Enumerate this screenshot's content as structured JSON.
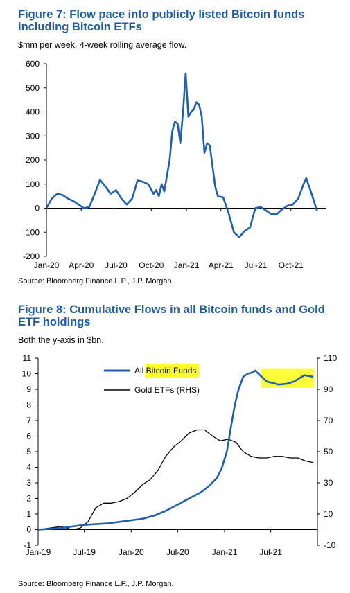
{
  "colors": {
    "title": "#1F5A9C",
    "flow_line": "#1F5FAE",
    "bitcoin_line": "#1F5FAE",
    "gold_line": "#000000",
    "highlight": "#FFFF2E"
  },
  "chart_data": [
    {
      "type": "line",
      "title": "Figure 7: Flow pace into publicly listed Bitcoin funds including Bitcoin ETFs",
      "subtitle": "$mm per week, 4-week rolling average flow.",
      "source": "Source: Bloomberg Finance L.P., J.P. Morgan.",
      "ylim": [
        -200,
        600
      ],
      "yticks": [
        "600",
        "500",
        "400",
        "300",
        "200",
        "100",
        "0",
        "-100",
        "-200"
      ],
      "xlim": [
        "2020-01-01",
        "2021-12-31"
      ],
      "xticks": [
        "Jan-20",
        "Apr-20",
        "Jul-20",
        "Oct-20",
        "Jan-21",
        "Apr-21",
        "Jul-21",
        "Oct-21"
      ],
      "series": [
        {
          "x": [
            "2020-01-01",
            "2020-01-15",
            "2020-01-29",
            "2020-02-12",
            "2020-02-26",
            "2020-03-11",
            "2020-03-25",
            "2020-04-08",
            "2020-04-22",
            "2020-05-06",
            "2020-05-20",
            "2020-06-03",
            "2020-06-17",
            "2020-07-01",
            "2020-07-15",
            "2020-07-29",
            "2020-08-12",
            "2020-08-26",
            "2020-09-09",
            "2020-09-23",
            "2020-10-07",
            "2020-10-14",
            "2020-10-21",
            "2020-10-28",
            "2020-11-04",
            "2020-11-18",
            "2020-11-25",
            "2020-12-02",
            "2020-12-09",
            "2020-12-16",
            "2020-12-23",
            "2020-12-30",
            "2021-01-06",
            "2021-01-13",
            "2021-01-20",
            "2021-01-27",
            "2021-02-03",
            "2021-02-10",
            "2021-02-17",
            "2021-02-24",
            "2021-03-03",
            "2021-03-17",
            "2021-03-24",
            "2021-04-07",
            "2021-04-21",
            "2021-05-05",
            "2021-05-19",
            "2021-06-02",
            "2021-06-16",
            "2021-06-30",
            "2021-07-14",
            "2021-07-28",
            "2021-08-11",
            "2021-08-25",
            "2021-09-08",
            "2021-09-22",
            "2021-10-06",
            "2021-10-20",
            "2021-11-03",
            "2021-11-10",
            "2021-11-24",
            "2021-12-08"
          ],
          "y": [
            0,
            40,
            60,
            55,
            40,
            30,
            15,
            0,
            5,
            60,
            118,
            90,
            60,
            75,
            40,
            15,
            40,
            115,
            110,
            100,
            60,
            75,
            50,
            100,
            70,
            200,
            320,
            360,
            350,
            270,
            400,
            560,
            380,
            400,
            410,
            440,
            430,
            380,
            230,
            270,
            260,
            90,
            50,
            45,
            -20,
            -100,
            -120,
            -95,
            -80,
            0,
            5,
            -10,
            -25,
            -25,
            -5,
            10,
            15,
            40,
            100,
            125,
            60,
            -10
          ]
        }
      ]
    },
    {
      "type": "line",
      "title": "Figure 8: Cumulative Flows in all Bitcoin funds and Gold ETF holdings",
      "subtitle": "Both the y-axis in $bn.",
      "source": "Source: Bloomberg Finance L.P., J.P. Morgan.",
      "ylim": [
        -1,
        11
      ],
      "yticks": [
        "11",
        "10",
        "9",
        "8",
        "7",
        "6",
        "5",
        "4",
        "3",
        "2",
        "1",
        "0",
        "-1"
      ],
      "y2lim": [
        -10,
        110
      ],
      "y2ticks": [
        "110",
        "90",
        "70",
        "50",
        "30",
        "10",
        "-10"
      ],
      "xlim": [
        "2019-01-01",
        "2021-12-31"
      ],
      "xticks": [
        "Jan-19",
        "Jul-19",
        "Jan-20",
        "Jul-20",
        "Jan-21",
        "Jul-21"
      ],
      "legend": {
        "placement": "top-center",
        "highlighted": "Bitcoin Funds"
      },
      "series": [
        {
          "name": "All Bitcoin Funds",
          "axis": "left",
          "x": [
            "2019-01-01",
            "2019-02-15",
            "2019-04-01",
            "2019-05-15",
            "2019-07-01",
            "2019-08-15",
            "2019-10-01",
            "2019-11-15",
            "2020-01-01",
            "2020-02-15",
            "2020-04-01",
            "2020-05-15",
            "2020-07-01",
            "2020-08-15",
            "2020-10-01",
            "2020-11-01",
            "2020-12-01",
            "2020-12-20",
            "2021-01-10",
            "2021-01-25",
            "2021-02-10",
            "2021-02-25",
            "2021-03-15",
            "2021-04-01",
            "2021-04-15",
            "2021-05-01",
            "2021-05-20",
            "2021-06-15",
            "2021-07-10",
            "2021-08-01",
            "2021-09-01",
            "2021-10-01",
            "2021-10-20",
            "2021-11-10",
            "2021-12-15"
          ],
          "y": [
            0,
            0.05,
            0.1,
            0.2,
            0.3,
            0.35,
            0.4,
            0.5,
            0.6,
            0.7,
            0.9,
            1.2,
            1.6,
            2.0,
            2.4,
            2.8,
            3.3,
            3.9,
            5.0,
            6.5,
            8.0,
            9.0,
            9.8,
            10.0,
            10.05,
            10.2,
            9.9,
            9.5,
            9.4,
            9.3,
            9.35,
            9.5,
            9.7,
            9.9,
            9.8
          ]
        },
        {
          "name": "Gold ETFs (RHS)",
          "axis": "right",
          "x": [
            "2019-01-01",
            "2019-02-15",
            "2019-04-01",
            "2019-05-15",
            "2019-06-15",
            "2019-07-15",
            "2019-08-15",
            "2019-09-15",
            "2019-10-15",
            "2019-11-15",
            "2019-12-15",
            "2020-01-15",
            "2020-02-15",
            "2020-03-15",
            "2020-04-15",
            "2020-05-15",
            "2020-06-15",
            "2020-07-15",
            "2020-08-15",
            "2020-09-15",
            "2020-10-15",
            "2020-11-15",
            "2020-12-15",
            "2021-01-15",
            "2021-02-15",
            "2021-03-15",
            "2021-04-15",
            "2021-05-15",
            "2021-06-15",
            "2021-07-15",
            "2021-08-15",
            "2021-09-15",
            "2021-10-15",
            "2021-11-15",
            "2021-12-15"
          ],
          "y": [
            0,
            1,
            2,
            0,
            1,
            5,
            14,
            17,
            17,
            18,
            20,
            24,
            29,
            32,
            38,
            47,
            53,
            57,
            62,
            64,
            64,
            60,
            57,
            58,
            56,
            50,
            47,
            46,
            46,
            47,
            47,
            46,
            46,
            44,
            43
          ]
        }
      ]
    }
  ]
}
